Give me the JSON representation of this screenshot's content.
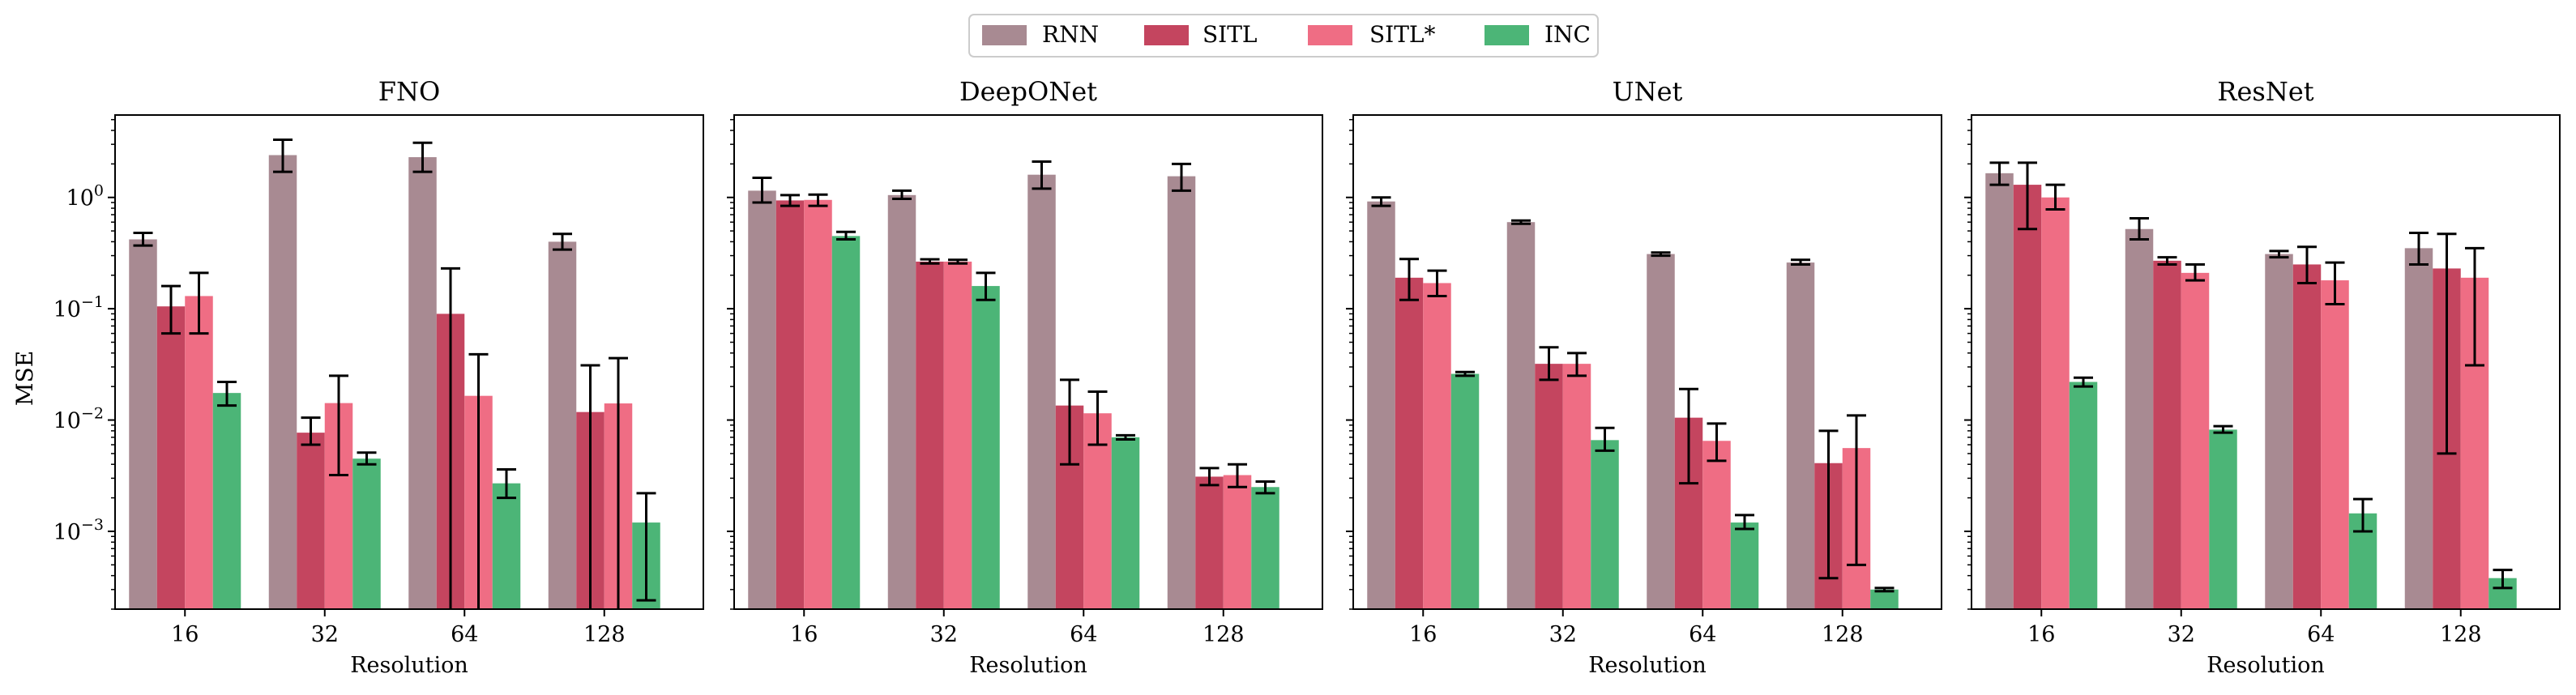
{
  "figure": {
    "ylabel": "MSE",
    "xlabel": "Resolution"
  },
  "legend": {
    "items": [
      {
        "label": "RNN",
        "color": "#a88a92"
      },
      {
        "label": "SITL",
        "color": "#c4455f"
      },
      {
        "label": "SITL*",
        "color": "#ef6d84"
      },
      {
        "label": "INC",
        "color": "#4cb577"
      }
    ]
  },
  "chart_data": [
    {
      "type": "bar",
      "title": "FNO",
      "xlabel": "Resolution",
      "ylabel": "MSE",
      "yscale": "log",
      "ylim": [
        0.0002,
        5.5
      ],
      "yticks": [
        {
          "value": 0.001,
          "base": "10",
          "exp": "−3"
        },
        {
          "value": 0.01,
          "base": "10",
          "exp": "−2"
        },
        {
          "value": 0.1,
          "base": "10",
          "exp": "−1"
        },
        {
          "value": 1,
          "base": "10",
          "exp": "0"
        }
      ],
      "categories": [
        "16",
        "32",
        "64",
        "128"
      ],
      "series": [
        {
          "name": "RNN",
          "values": [
            0.42,
            2.4,
            2.3,
            0.4
          ],
          "err_low": [
            0.37,
            1.7,
            1.7,
            0.34
          ],
          "err_high": [
            0.48,
            3.3,
            3.1,
            0.47
          ]
        },
        {
          "name": "SITL",
          "values": [
            0.105,
            0.0077,
            0.09,
            0.0118
          ],
          "err_low": [
            0.06,
            0.006,
            0.0002,
            0.0002
          ],
          "err_high": [
            0.16,
            0.0105,
            0.23,
            0.031
          ]
        },
        {
          "name": "SITL*",
          "values": [
            0.13,
            0.0142,
            0.0165,
            0.0141
          ],
          "err_low": [
            0.06,
            0.0032,
            0.0002,
            0.0002
          ],
          "err_high": [
            0.21,
            0.025,
            0.039,
            0.036
          ]
        },
        {
          "name": "INC",
          "values": [
            0.0175,
            0.0045,
            0.0027,
            0.0012
          ],
          "err_low": [
            0.0135,
            0.004,
            0.002,
            0.00024
          ],
          "err_high": [
            0.022,
            0.0051,
            0.0036,
            0.0022
          ]
        }
      ]
    },
    {
      "type": "bar",
      "title": "DeepONet",
      "xlabel": "Resolution",
      "ylabel": "",
      "yscale": "log",
      "ylim": [
        0.0002,
        5.5
      ],
      "yticks": [],
      "categories": [
        "16",
        "32",
        "64",
        "128"
      ],
      "series": [
        {
          "name": "RNN",
          "values": [
            1.15,
            1.05,
            1.6,
            1.55
          ],
          "err_low": [
            0.9,
            0.97,
            1.2,
            1.15
          ],
          "err_high": [
            1.5,
            1.15,
            2.1,
            2.0
          ]
        },
        {
          "name": "SITL",
          "values": [
            0.94,
            0.265,
            0.0135,
            0.0031
          ],
          "err_low": [
            0.84,
            0.255,
            0.004,
            0.0026
          ],
          "err_high": [
            1.05,
            0.278,
            0.023,
            0.0037
          ]
        },
        {
          "name": "SITL*",
          "values": [
            0.95,
            0.265,
            0.0115,
            0.0032
          ],
          "err_low": [
            0.84,
            0.255,
            0.006,
            0.0025
          ],
          "err_high": [
            1.06,
            0.275,
            0.018,
            0.004
          ]
        },
        {
          "name": "INC",
          "values": [
            0.45,
            0.16,
            0.007,
            0.0025
          ],
          "err_low": [
            0.42,
            0.12,
            0.0067,
            0.0022
          ],
          "err_high": [
            0.49,
            0.21,
            0.0073,
            0.0028
          ]
        }
      ]
    },
    {
      "type": "bar",
      "title": "UNet",
      "xlabel": "Resolution",
      "ylabel": "",
      "yscale": "log",
      "ylim": [
        0.0002,
        5.5
      ],
      "yticks": [],
      "categories": [
        "16",
        "32",
        "64",
        "128"
      ],
      "series": [
        {
          "name": "RNN",
          "values": [
            0.92,
            0.6,
            0.31,
            0.26
          ],
          "err_low": [
            0.84,
            0.58,
            0.3,
            0.25
          ],
          "err_high": [
            1.0,
            0.62,
            0.32,
            0.275
          ]
        },
        {
          "name": "SITL",
          "values": [
            0.19,
            0.032,
            0.0105,
            0.0041
          ],
          "err_low": [
            0.12,
            0.023,
            0.0027,
            0.00038
          ],
          "err_high": [
            0.28,
            0.045,
            0.019,
            0.008
          ]
        },
        {
          "name": "SITL*",
          "values": [
            0.17,
            0.032,
            0.0065,
            0.0056
          ],
          "err_low": [
            0.13,
            0.025,
            0.0043,
            0.0005
          ],
          "err_high": [
            0.22,
            0.04,
            0.0093,
            0.011
          ]
        },
        {
          "name": "INC",
          "values": [
            0.026,
            0.0066,
            0.0012,
            0.0003
          ],
          "err_low": [
            0.025,
            0.0053,
            0.00105,
            0.00029
          ],
          "err_high": [
            0.027,
            0.0085,
            0.0014,
            0.00031
          ]
        }
      ]
    },
    {
      "type": "bar",
      "title": "ResNet",
      "xlabel": "Resolution",
      "ylabel": "",
      "yscale": "log",
      "ylim": [
        0.0002,
        5.5
      ],
      "yticks": [],
      "categories": [
        "16",
        "32",
        "64",
        "128"
      ],
      "series": [
        {
          "name": "RNN",
          "values": [
            1.65,
            0.52,
            0.31,
            0.35
          ],
          "err_low": [
            1.3,
            0.42,
            0.29,
            0.25
          ],
          "err_high": [
            2.05,
            0.65,
            0.33,
            0.48
          ]
        },
        {
          "name": "SITL",
          "values": [
            1.3,
            0.27,
            0.25,
            0.23
          ],
          "err_low": [
            0.52,
            0.25,
            0.17,
            0.005
          ],
          "err_high": [
            2.05,
            0.29,
            0.36,
            0.47
          ]
        },
        {
          "name": "SITL*",
          "values": [
            1.0,
            0.21,
            0.18,
            0.19
          ],
          "err_low": [
            0.78,
            0.18,
            0.11,
            0.031
          ],
          "err_high": [
            1.3,
            0.25,
            0.26,
            0.35
          ]
        },
        {
          "name": "INC",
          "values": [
            0.022,
            0.0082,
            0.00145,
            0.00038
          ],
          "err_low": [
            0.02,
            0.0077,
            0.001,
            0.00031
          ],
          "err_high": [
            0.024,
            0.0088,
            0.00195,
            0.00045
          ]
        }
      ]
    }
  ]
}
